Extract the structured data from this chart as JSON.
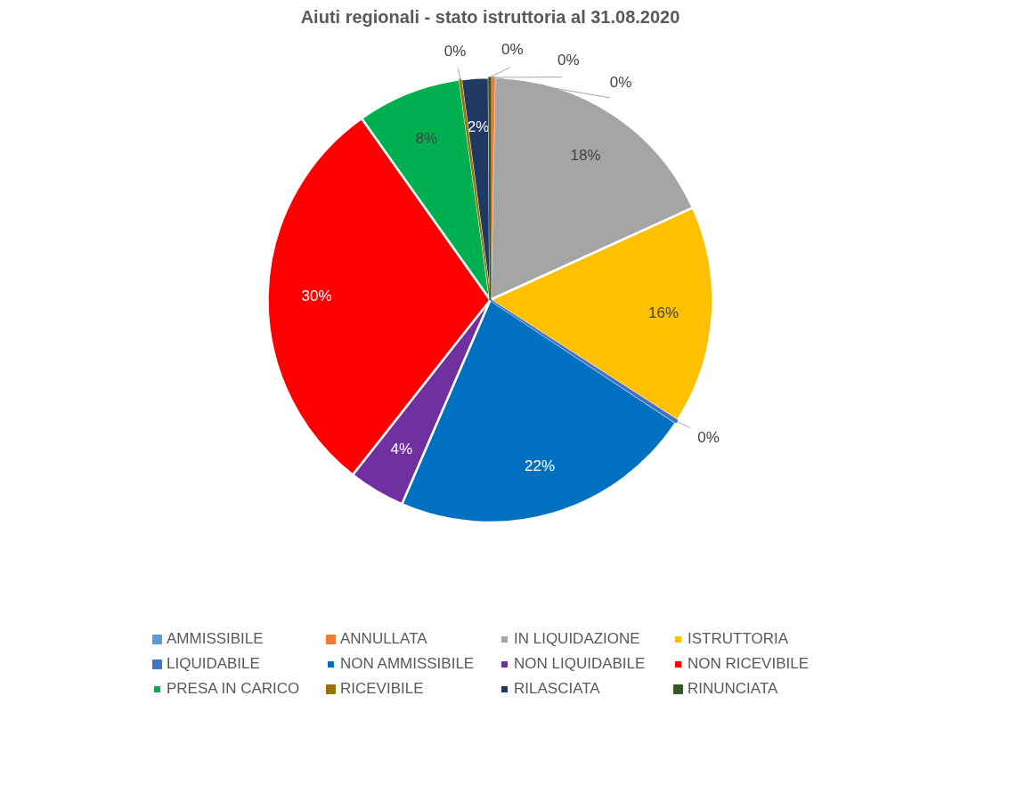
{
  "chart_data": {
    "type": "pie",
    "title": "Aiuti regionali - stato istruttoria al 31.08.2020",
    "categories": [
      "AMMISSIBILE",
      "ANNULLATA",
      "IN LIQUIDAZIONE",
      "ISTRUTTORIA",
      "LIQUIDABILE",
      "NON AMMISSIBILE",
      "NON LIQUIDABILE",
      "NON RICEVIBILE",
      "PRESA IN CARICO",
      "RICEVIBILE",
      "RILASCIATA",
      "RINUNCIATA"
    ],
    "values": [
      0.1,
      0.2,
      17.9,
      15.9,
      0.2,
      22.2,
      4.1,
      29.6,
      7.6,
      0.1,
      2.0,
      0.1
    ],
    "value_labels": [
      "0%",
      "0%",
      "18%",
      "16%",
      "0%",
      "22%",
      "4%",
      "30%",
      "8%",
      "0%",
      "2%",
      "0%"
    ],
    "colors": [
      "#5b9bd5",
      "#ed7d31",
      "#a5a5a5",
      "#ffc000",
      "#4472c4",
      "#0070c0",
      "#7030a0",
      "#ff0000",
      "#00b050",
      "#997300",
      "#203864",
      "#375623"
    ],
    "legend": "bottom"
  }
}
